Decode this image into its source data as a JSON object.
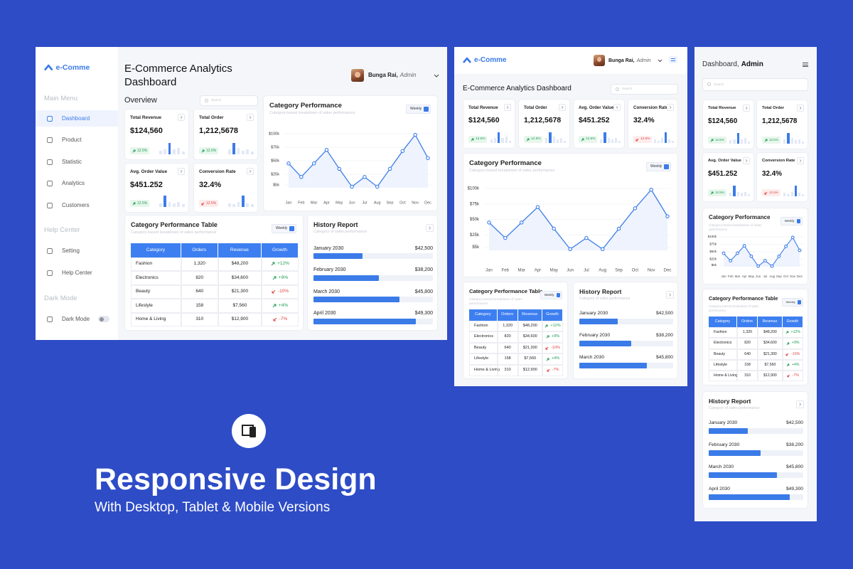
{
  "brand": "e-Comme",
  "title": "E-Commerce Analytics Dashboard",
  "mobile_title": "Dashboard,",
  "user": {
    "name": "Bunga Rai,",
    "role": "Admin"
  },
  "sidebar": {
    "main_menu": {
      "heading": "Main Menu",
      "items": [
        "Dashboard",
        "Product",
        "Statistic",
        "Analytics",
        "Customers"
      ]
    },
    "help_center": {
      "heading": "Help Center",
      "items": [
        "Setting",
        "Help Center"
      ]
    },
    "dark_mode": {
      "heading": "Dark Mode",
      "items": [
        "Dark Mode"
      ]
    }
  },
  "overview": "Overview",
  "search_placeholder": "Search",
  "kpis": [
    {
      "label": "Total Revenue",
      "value": "$124,560",
      "change": "12.5%",
      "trend": "up",
      "spark": {
        "values": [
          3,
          4,
          9,
          4,
          5,
          2
        ],
        "ylim": [
          0,
          10
        ]
      }
    },
    {
      "label": "Total Order",
      "value": "1,212,5678",
      "change": "12.5%",
      "trend": "up",
      "spark": {
        "values": [
          4,
          9,
          5,
          3,
          4,
          2
        ],
        "ylim": [
          0,
          10
        ]
      }
    },
    {
      "label": "Avg. Order Value",
      "value": "$451.252",
      "change": "12.5%",
      "trend": "up",
      "spark": {
        "values": [
          3,
          9,
          4,
          3,
          4,
          2
        ],
        "ylim": [
          0,
          10
        ]
      }
    },
    {
      "label": "Conversion Rate",
      "value": "32.4%",
      "change": "12.5%",
      "trend": "down",
      "spark": {
        "values": [
          3,
          2,
          4,
          9,
          3,
          2
        ],
        "ylim": [
          0,
          10
        ]
      }
    }
  ],
  "category_performance": {
    "type": "line",
    "title": "Category Performance",
    "subtitle": "Category-based breakdown of sales performance",
    "filter": "Weekly",
    "categories": [
      "Jan",
      "Feb",
      "Mar",
      "Apr",
      "May",
      "Jun",
      "Jul",
      "Aug",
      "Sep",
      "Oct",
      "Nov",
      "Dec"
    ],
    "values": [
      45000,
      20000,
      45000,
      70000,
      35000,
      2000,
      20000,
      2000,
      35000,
      68000,
      98000,
      55000
    ],
    "ylim": [
      0,
      100000
    ],
    "yticks": [
      {
        "value": 5000,
        "label": "$5k"
      },
      {
        "value": 25000,
        "label": "$25k"
      },
      {
        "value": 50000,
        "label": "$50k"
      },
      {
        "value": 75000,
        "label": "$75k"
      },
      {
        "value": 100000,
        "label": "$100k"
      }
    ],
    "color": "#3f7ee8",
    "grid": true
  },
  "table": {
    "title": "Category Performance Table",
    "subtitle": "Category-based breakdown of sales performance",
    "filter": "Weekly",
    "columns": [
      "Category",
      "Orders",
      "Revenue",
      "Growth"
    ],
    "rows": [
      [
        "Fashion",
        "1,320",
        "$48,200",
        "+12%"
      ],
      [
        "Electronics",
        "820",
        "$34,600",
        "+9%"
      ],
      [
        "Beauty",
        "640",
        "$21,300",
        "-10%"
      ],
      [
        "Lifestyle",
        "158",
        "$7,560",
        "+4%"
      ],
      [
        "Home & Living",
        "310",
        "$12,900",
        "-7%"
      ]
    ]
  },
  "history": {
    "title": "History Report",
    "subtitle": "Category of sales performance",
    "xlim": [
      0,
      100
    ],
    "items": [
      {
        "label": "January 2030",
        "amount": "$42,500",
        "progress": 41
      },
      {
        "label": "February 2030",
        "amount": "$38,200",
        "progress": 55
      },
      {
        "label": "March 2030",
        "amount": "$45,800",
        "progress": 72
      },
      {
        "label": "April 2030",
        "amount": "$49,300",
        "progress": 86
      }
    ]
  },
  "banner": {
    "title": "Responsive Design",
    "subtitle": "With Desktop, Tablet & Mobile Versions"
  }
}
